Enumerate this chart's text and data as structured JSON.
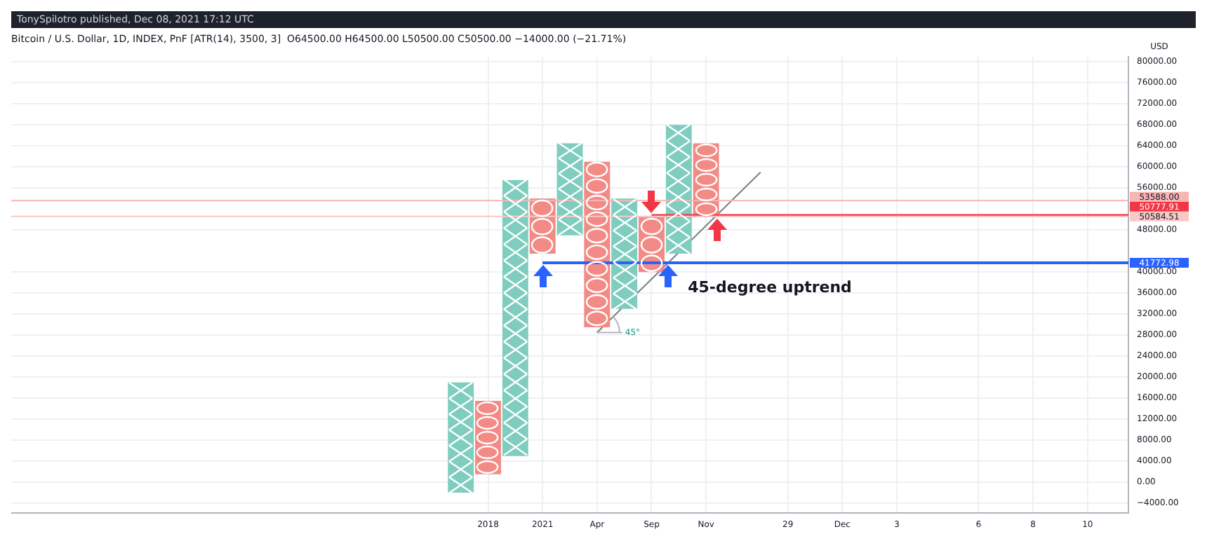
{
  "chart_data": {
    "type": "bar",
    "title": "Bitcoin / U.S. Dollar, 1D, INDEX, PnF [ATR(14), 3500, 3]  O64500.00 H64500.00 L50500.00 C50500.00 −14000.00 (−21.71%)",
    "ylabel": "USD",
    "annotations": [
      "TonySpilotro published, Dec 08, 2021 17:12 UTC",
      "45-degree uptrend",
      {
        "text": "45°",
        "x": "Apr",
        "y": 28500
      }
    ],
    "categories": [
      null,
      null,
      null,
      null,
      null,
      null,
      null,
      null,
      null,
      null,
      null,
      null,
      null,
      null,
      null,
      null,
      null,
      "2018",
      null,
      "2021",
      null,
      "Apr",
      null,
      "Sep",
      null,
      "Nov",
      null,
      null,
      "29",
      null,
      "Dec",
      null,
      "3",
      null,
      null,
      "6",
      null,
      "8",
      null,
      "10",
      null
    ],
    "series": [
      {
        "marker": "cross",
        "color": "#7fcdbf",
        "values": [
          null,
          null,
          null,
          null,
          null,
          null,
          null,
          null,
          null,
          null,
          null,
          null,
          null,
          null,
          null,
          null,
          21000,
          null,
          52500,
          null,
          17500,
          null,
          21000,
          null,
          24500,
          null,
          null,
          null,
          null,
          null,
          null,
          null,
          null,
          null,
          null,
          null,
          null,
          null,
          null,
          null,
          null
        ],
        "base": [
          null,
          null,
          null,
          null,
          null,
          null,
          null,
          null,
          null,
          null,
          null,
          null,
          null,
          null,
          null,
          null,
          -2000,
          null,
          5000,
          null,
          47000,
          null,
          33000,
          null,
          43500,
          null,
          null,
          null,
          null,
          null,
          null,
          null,
          null,
          null,
          null,
          null,
          null,
          null,
          null,
          null,
          null
        ]
      },
      {
        "marker": "circle",
        "color": "#f28b86",
        "values": [
          null,
          null,
          null,
          null,
          null,
          null,
          null,
          null,
          null,
          null,
          null,
          null,
          null,
          null,
          null,
          null,
          null,
          14000,
          null,
          10500,
          null,
          31500,
          null,
          10500,
          null,
          14000,
          null,
          null,
          null,
          null,
          null,
          null,
          null,
          null,
          null,
          null,
          null,
          null,
          null,
          null,
          null
        ],
        "base": [
          null,
          null,
          null,
          null,
          null,
          null,
          null,
          null,
          null,
          null,
          null,
          null,
          null,
          null,
          null,
          null,
          null,
          1500,
          null,
          43500,
          null,
          29500,
          null,
          40000,
          null,
          50500,
          null,
          null,
          null,
          null,
          null,
          null,
          null,
          null,
          null,
          null,
          null,
          null,
          null,
          null,
          null
        ]
      },
      {
        "type": "line",
        "marker": "none",
        "color": "#787b86",
        "values": [
          null,
          null,
          null,
          null,
          null,
          null,
          null,
          null,
          null,
          null,
          null,
          null,
          null,
          null,
          null,
          null,
          null,
          null,
          null,
          null,
          null,
          28500,
          null,
          null,
          null,
          null,
          null,
          59000,
          null,
          null,
          null,
          null,
          null,
          null,
          null,
          null,
          null,
          null,
          null,
          null,
          null
        ]
      }
    ],
    "ylim": [
      -5800,
      81000
    ],
    "yticks": [
      {
        "value": 80000,
        "label": "80000.00"
      },
      {
        "value": 76000,
        "label": "76000.00"
      },
      {
        "value": 72000,
        "label": "72000.00"
      },
      {
        "value": 68000,
        "label": "68000.00"
      },
      {
        "value": 64000,
        "label": "64000.00"
      },
      {
        "value": 60000,
        "label": "60000.00"
      },
      {
        "value": 56000,
        "label": "56000.00"
      },
      {
        "value": 48000,
        "label": "48000.00"
      },
      {
        "value": 40000,
        "label": "40000.00"
      },
      {
        "value": 36000,
        "label": "36000.00"
      },
      {
        "value": 32000,
        "label": "32000.00"
      },
      {
        "value": 28000,
        "label": "28000.00"
      },
      {
        "value": 24000,
        "label": "24000.00"
      },
      {
        "value": 20000,
        "label": "20000.00"
      },
      {
        "value": 16000,
        "label": "16000.00"
      },
      {
        "value": 12000,
        "label": "12000.00"
      },
      {
        "value": 8000,
        "label": "8000.00"
      },
      {
        "value": 4000,
        "label": "4000.00"
      },
      {
        "value": 0,
        "label": "0.00"
      },
      {
        "value": -4000,
        "label": "−4000.00"
      }
    ],
    "ref_lines": [
      {
        "axis": "y",
        "value": 53588,
        "label": "53588.00",
        "color": "#f7b5b3"
      },
      {
        "axis": "y",
        "value": 50777.91,
        "label": "50777.91",
        "color": "#f23645"
      },
      {
        "axis": "y",
        "value": 50584.51,
        "label": "50584.51",
        "color": "#f9c9c7"
      },
      {
        "axis": "y",
        "value": 41772.98,
        "label": "41772.98",
        "color": "#2962ff"
      }
    ],
    "grid": true,
    "legend": false
  }
}
